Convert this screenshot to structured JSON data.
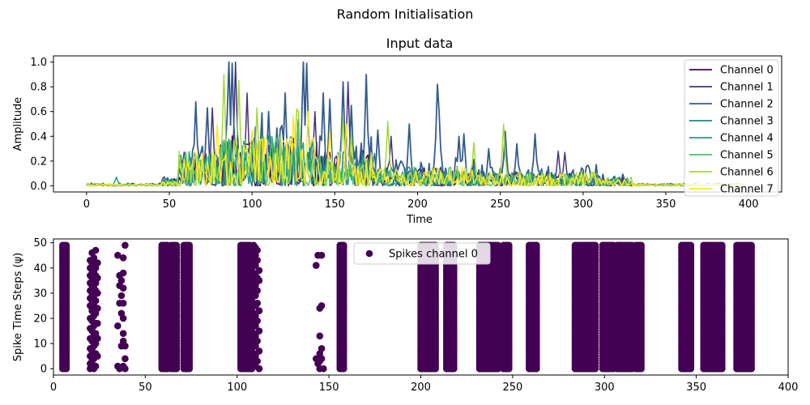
{
  "figure": {
    "suptitle": "Random Initialisation"
  },
  "chart_data": [
    {
      "type": "line",
      "title": "Input data",
      "xlabel": "Time",
      "ylabel": "Amplitude",
      "xlim": [
        -20,
        420
      ],
      "ylim": [
        -0.05,
        1.05
      ],
      "xticks": [
        0,
        50,
        100,
        150,
        200,
        250,
        300,
        350,
        400
      ],
      "yticks": [
        "0.0",
        "0.2",
        "0.4",
        "0.6",
        "0.8",
        "1.0"
      ],
      "grid": false,
      "legend_position": "top-right",
      "series": [
        {
          "name": "Channel 0",
          "color": "#440154",
          "n_points": 400
        },
        {
          "name": "Channel 1",
          "color": "#46327e",
          "n_points": 400
        },
        {
          "name": "Channel 2",
          "color": "#365c8d",
          "n_points": 400
        },
        {
          "name": "Channel 3",
          "color": "#277f8e",
          "n_points": 400
        },
        {
          "name": "Channel 4",
          "color": "#1fa187",
          "n_points": 400
        },
        {
          "name": "Channel 5",
          "color": "#4ac16d",
          "n_points": 400
        },
        {
          "name": "Channel 6",
          "color": "#a0da39",
          "n_points": 400
        },
        {
          "name": "Channel 7",
          "color": "#fde725",
          "n_points": 400
        }
      ]
    },
    {
      "type": "scatter",
      "title": "",
      "xlabel": "",
      "ylabel": "Spike Time Steps (ψ)",
      "xlim": [
        0,
        400
      ],
      "ylim": [
        -2.5,
        51.5
      ],
      "xticks": [
        0,
        50,
        100,
        150,
        200,
        250,
        300,
        350,
        400
      ],
      "yticks": [
        0,
        10,
        20,
        30,
        40,
        50
      ],
      "grid": false,
      "legend_position": "top-center",
      "series": [
        {
          "name": "Spikes channel 0",
          "color": "#440154",
          "full_columns": [
            [
              5,
              7
            ],
            [
              59,
              62
            ],
            [
              64,
              67
            ],
            [
              71,
              74
            ],
            [
              102,
              107
            ],
            [
              156,
              158
            ],
            [
              200,
              208
            ],
            [
              214,
              218
            ],
            [
              232,
              242
            ],
            [
              245,
              248
            ],
            [
              259,
              263
            ],
            [
              284,
              295
            ],
            [
              299,
              305
            ],
            [
              307,
              315
            ],
            [
              317,
              320
            ],
            [
              342,
              347
            ],
            [
              354,
              364
            ],
            [
              372,
              380
            ]
          ],
          "partial_points": [
            [
              20,
              0
            ],
            [
              20,
              2
            ],
            [
              20,
              5
            ],
            [
              20,
              8
            ],
            [
              20,
              12
            ],
            [
              20,
              16
            ],
            [
              20,
              20
            ],
            [
              20,
              25
            ],
            [
              20,
              28
            ],
            [
              20,
              31
            ],
            [
              20,
              34
            ],
            [
              20,
              37
            ],
            [
              20,
              40
            ],
            [
              20,
              43
            ],
            [
              21,
              3
            ],
            [
              21,
              7
            ],
            [
              21,
              11
            ],
            [
              21,
              15
            ],
            [
              21,
              19
            ],
            [
              21,
              23
            ],
            [
              21,
              27
            ],
            [
              21,
              30
            ],
            [
              21,
              33
            ],
            [
              21,
              36
            ],
            [
              21,
              39
            ],
            [
              21,
              42
            ],
            [
              21,
              46
            ],
            [
              22,
              0
            ],
            [
              22,
              4
            ],
            [
              22,
              9
            ],
            [
              22,
              13
            ],
            [
              22,
              17
            ],
            [
              22,
              21
            ],
            [
              22,
              26
            ],
            [
              22,
              29
            ],
            [
              22,
              32
            ],
            [
              22,
              35
            ],
            [
              22,
              38
            ],
            [
              22,
              41
            ],
            [
              22,
              44
            ],
            [
              23,
              1
            ],
            [
              23,
              6
            ],
            [
              23,
              10
            ],
            [
              23,
              14
            ],
            [
              23,
              18
            ],
            [
              23,
              22
            ],
            [
              23,
              24
            ],
            [
              23,
              27
            ],
            [
              23,
              31
            ],
            [
              23,
              34
            ],
            [
              23,
              37
            ],
            [
              23,
              40
            ],
            [
              23,
              47
            ],
            [
              24,
              5
            ],
            [
              24,
              12
            ],
            [
              24,
              18
            ],
            [
              24,
              24
            ],
            [
              24,
              30
            ],
            [
              24,
              36
            ],
            [
              24,
              42
            ],
            [
              35,
              1
            ],
            [
              35,
              17
            ],
            [
              35,
              45
            ],
            [
              36,
              0
            ],
            [
              36,
              26
            ],
            [
              36,
              33
            ],
            [
              36,
              37
            ],
            [
              37,
              9
            ],
            [
              37,
              22
            ],
            [
              37,
              29
            ],
            [
              37,
              35
            ],
            [
              38,
              1
            ],
            [
              38,
              11
            ],
            [
              38,
              14
            ],
            [
              38,
              20
            ],
            [
              38,
              26
            ],
            [
              38,
              32
            ],
            [
              38,
              38
            ],
            [
              38,
              44
            ],
            [
              39,
              0
            ],
            [
              39,
              4
            ],
            [
              39,
              9
            ],
            [
              39,
              49
            ],
            [
              108,
              0
            ],
            [
              108,
              4
            ],
            [
              108,
              8
            ],
            [
              108,
              12
            ],
            [
              108,
              16
            ],
            [
              108,
              20
            ],
            [
              108,
              24
            ],
            [
              108,
              28
            ],
            [
              108,
              32
            ],
            [
              108,
              36
            ],
            [
              108,
              40
            ],
            [
              108,
              44
            ],
            [
              108,
              48
            ],
            [
              109,
              2
            ],
            [
              109,
              6
            ],
            [
              109,
              10
            ],
            [
              109,
              14
            ],
            [
              109,
              18
            ],
            [
              109,
              22
            ],
            [
              109,
              26
            ],
            [
              109,
              30
            ],
            [
              109,
              34
            ],
            [
              109,
              38
            ],
            [
              109,
              42
            ],
            [
              109,
              46
            ],
            [
              109,
              49
            ],
            [
              110,
              1
            ],
            [
              110,
              5
            ],
            [
              110,
              9
            ],
            [
              110,
              13
            ],
            [
              110,
              17
            ],
            [
              110,
              21
            ],
            [
              110,
              25
            ],
            [
              110,
              29
            ],
            [
              110,
              33
            ],
            [
              110,
              37
            ],
            [
              110,
              41
            ],
            [
              110,
              45
            ],
            [
              110,
              48
            ],
            [
              111,
              3
            ],
            [
              111,
              11
            ],
            [
              111,
              19
            ],
            [
              111,
              26
            ],
            [
              111,
              31
            ],
            [
              111,
              36
            ],
            [
              111,
              43
            ],
            [
              111,
              47
            ],
            [
              112,
              0
            ],
            [
              112,
              7
            ],
            [
              112,
              15
            ],
            [
              112,
              23
            ],
            [
              112,
              35
            ],
            [
              112,
              39
            ],
            [
              143,
              4
            ],
            [
              143,
              41
            ],
            [
              144,
              2
            ],
            [
              144,
              45
            ],
            [
              145,
              0
            ],
            [
              145,
              3
            ],
            [
              145,
              6
            ],
            [
              145,
              13
            ],
            [
              145,
              24
            ],
            [
              146,
              4
            ],
            [
              146,
              8
            ],
            [
              146,
              25
            ],
            [
              146,
              45
            ],
            [
              147,
              0
            ]
          ]
        }
      ]
    }
  ]
}
